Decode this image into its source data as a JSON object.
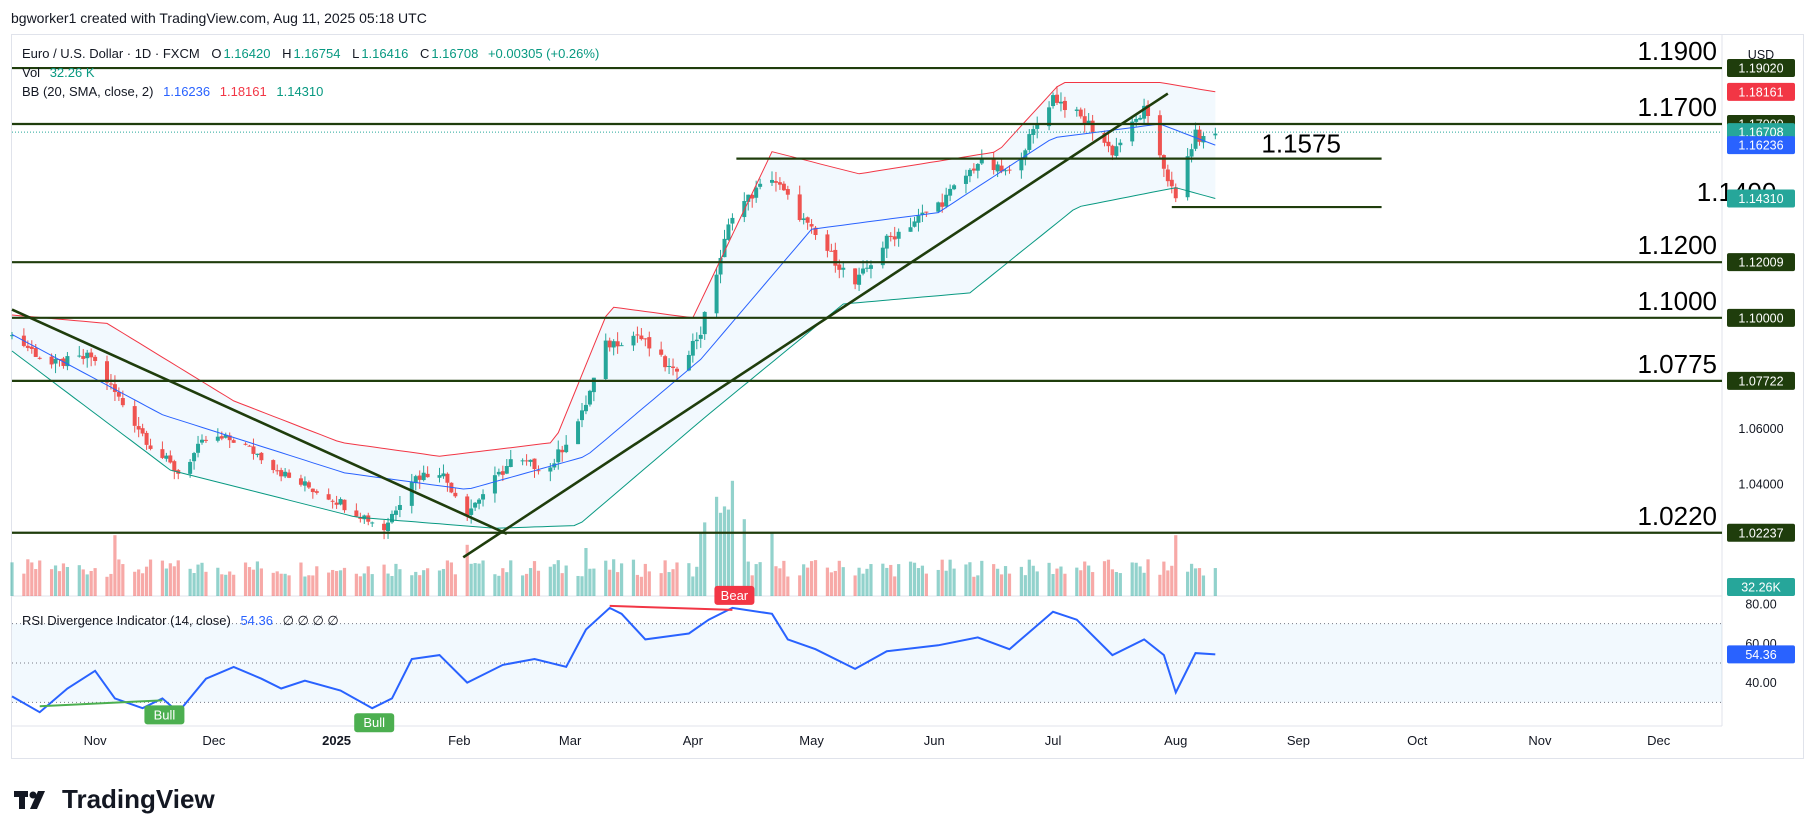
{
  "header": {
    "caption": "bgworker1 created with TradingView.com, Aug 11, 2025 05:18 UTC"
  },
  "legend": {
    "symbol": "Euro / U.S. Dollar · 1D · FXCM",
    "o_label": "O",
    "o_value": "1.16420",
    "h_label": "H",
    "h_value": "1.16754",
    "l_label": "L",
    "l_value": "1.16416",
    "c_label": "C",
    "c_value": "1.16708",
    "change": "+0.00305 (+0.26%)",
    "vol_label": "Vol",
    "vol_value": "32.26 K",
    "bb_label": "BB (20, SMA, close, 2)",
    "bb_basis": "1.16236",
    "bb_upper": "1.18161",
    "bb_lower": "1.14310"
  },
  "rsi_legend": {
    "label": "RSI Divergence Indicator (14, close)",
    "value": "54.36",
    "placeholders": "∅ ∅ ∅ ∅"
  },
  "brand": {
    "name": "TradingView"
  },
  "colors": {
    "up": "#26a69a",
    "down": "#ef5350",
    "line": "#1f3d0c",
    "bb_upper": "#f23645",
    "bb_basis": "#2962ff",
    "bb_lower": "#089981",
    "rsi": "#2962ff",
    "bull": "#4caf50",
    "bear": "#f23645",
    "axis_text": "#131722",
    "grid": "#f0f3fa"
  },
  "chart_data": {
    "type": "candlestick",
    "symbol": "EURUSD",
    "timeframe": "1D",
    "x_range": [
      "2024-10-11",
      "2025-12-17"
    ],
    "price_axis": {
      "ylim": [
        1.0017,
        1.2025
      ],
      "currency": "USD",
      "tick_labels": [
        "1.06000",
        "1.04000"
      ]
    },
    "time_axis": {
      "labels": [
        "Nov",
        "Dec",
        "2025",
        "Feb",
        "Mar",
        "Apr",
        "May",
        "Jun",
        "Jul",
        "Aug",
        "Sep",
        "Oct",
        "Nov",
        "Dec"
      ],
      "dates": [
        "2024-11-01",
        "2024-12-01",
        "2025-01-01",
        "2025-02-01",
        "2025-03-01",
        "2025-04-01",
        "2025-05-01",
        "2025-06-01",
        "2025-07-01",
        "2025-08-01",
        "2025-09-01",
        "2025-10-01",
        "2025-11-01",
        "2025-12-01"
      ]
    },
    "close_path": [
      [
        "2024-10-11",
        1.0935
      ],
      [
        "2024-10-21",
        1.083
      ],
      [
        "2024-10-31",
        1.086
      ],
      [
        "2024-11-06",
        1.073
      ],
      [
        "2024-11-15",
        1.054
      ],
      [
        "2024-11-22",
        1.044
      ],
      [
        "2024-11-29",
        1.056
      ],
      [
        "2024-12-06",
        1.056
      ],
      [
        "2024-12-13",
        1.05
      ],
      [
        "2024-12-20",
        1.042
      ],
      [
        "2024-12-31",
        1.035
      ],
      [
        "2025-01-13",
        1.024
      ],
      [
        "2025-01-20",
        1.042
      ],
      [
        "2025-01-27",
        1.045
      ],
      [
        "2025-02-03",
        1.03
      ],
      [
        "2025-02-14",
        1.048
      ],
      [
        "2025-02-24",
        1.046
      ],
      [
        "2025-03-04",
        1.065
      ],
      [
        "2025-03-10",
        1.09
      ],
      [
        "2025-03-18",
        1.094
      ],
      [
        "2025-03-27",
        1.08
      ],
      [
        "2025-04-03",
        1.095
      ],
      [
        "2025-04-11",
        1.138
      ],
      [
        "2025-04-21",
        1.151
      ],
      [
        "2025-04-30",
        1.133
      ],
      [
        "2025-05-12",
        1.112
      ],
      [
        "2025-05-20",
        1.128
      ],
      [
        "2025-06-03",
        1.142
      ],
      [
        "2025-06-12",
        1.156
      ],
      [
        "2025-06-20",
        1.152
      ],
      [
        "2025-07-01",
        1.18
      ],
      [
        "2025-07-10",
        1.17
      ],
      [
        "2025-07-16",
        1.16
      ],
      [
        "2025-07-24",
        1.175
      ],
      [
        "2025-07-28",
        1.159
      ],
      [
        "2025-08-01",
        1.142
      ],
      [
        "2025-08-04",
        1.158
      ],
      [
        "2025-08-06",
        1.166
      ],
      [
        "2025-08-08",
        1.1642
      ],
      [
        "2025-08-11",
        1.16708
      ]
    ],
    "bollinger": {
      "period": 20,
      "stddev": 2,
      "upper": [
        [
          "2024-10-11",
          1.101
        ],
        [
          "2024-11-04",
          1.098
        ],
        [
          "2024-12-06",
          1.07
        ],
        [
          "2025-01-02",
          1.055
        ],
        [
          "2025-01-27",
          1.05
        ],
        [
          "2025-02-25",
          1.055
        ],
        [
          "2025-03-11",
          1.104
        ],
        [
          "2025-04-01",
          1.1
        ],
        [
          "2025-04-21",
          1.16
        ],
        [
          "2025-05-13",
          1.152
        ],
        [
          "2025-06-17",
          1.16
        ],
        [
          "2025-07-03",
          1.185
        ],
        [
          "2025-07-28",
          1.185
        ],
        [
          "2025-08-11",
          1.18161
        ]
      ],
      "basis": [
        [
          "2024-10-11",
          1.094
        ],
        [
          "2024-11-18",
          1.065
        ],
        [
          "2025-01-03",
          1.044
        ],
        [
          "2025-02-03",
          1.038
        ],
        [
          "2025-03-05",
          1.05
        ],
        [
          "2025-04-03",
          1.085
        ],
        [
          "2025-05-01",
          1.132
        ],
        [
          "2025-06-02",
          1.138
        ],
        [
          "2025-07-01",
          1.165
        ],
        [
          "2025-07-28",
          1.17
        ],
        [
          "2025-08-11",
          1.16236
        ]
      ],
      "lower": [
        [
          "2024-10-11",
          1.088
        ],
        [
          "2024-11-20",
          1.045
        ],
        [
          "2025-01-06",
          1.028
        ],
        [
          "2025-02-10",
          1.024
        ],
        [
          "2025-03-03",
          1.025
        ],
        [
          "2025-04-04",
          1.064
        ],
        [
          "2025-05-09",
          1.105
        ],
        [
          "2025-06-10",
          1.109
        ],
        [
          "2025-07-07",
          1.14
        ],
        [
          "2025-08-01",
          1.147
        ],
        [
          "2025-08-11",
          1.1431
        ]
      ]
    },
    "horizontal_levels": [
      {
        "label": "1.1900",
        "value": 1.1902,
        "badge": "1.19020"
      },
      {
        "label": "1.1700",
        "value": 1.17,
        "badge": "1.17000"
      },
      {
        "label": "1.1575",
        "value": 1.1575,
        "from": "2025-04-12",
        "to": "2025-09-22"
      },
      {
        "label": "1.1400",
        "value": 1.14,
        "from": "2025-07-31",
        "to": "2025-09-22"
      },
      {
        "label": "1.1200",
        "value": 1.12009,
        "badge": "1.12009"
      },
      {
        "label": "1.1000",
        "value": 1.1,
        "badge": "1.10000"
      },
      {
        "label": "1.0775",
        "value": 1.07722,
        "badge": "1.07722"
      },
      {
        "label": "1.0220",
        "value": 1.02237,
        "badge": "1.02237"
      }
    ],
    "trendlines": [
      {
        "from": [
          "2024-10-11",
          1.103
        ],
        "to": [
          "2025-02-13",
          1.022
        ]
      },
      {
        "from": [
          "2025-02-02",
          1.0135
        ],
        "to": [
          "2025-07-30",
          1.181
        ]
      }
    ],
    "price_badges": [
      {
        "text": "1.18161",
        "value": 1.18161,
        "color": "#f23645"
      },
      {
        "text": "1.16708",
        "value": 1.16708,
        "color": "#26a69a"
      },
      {
        "text": "1.16236",
        "value": 1.16236,
        "color": "#2962ff"
      },
      {
        "text": "1.14310",
        "value": 1.1431,
        "color": "#26a69a"
      }
    ],
    "volume": {
      "last": "32.26K",
      "spikes": [
        [
          "2024-11-06",
          1.9
        ],
        [
          "2025-02-03",
          1.6
        ],
        [
          "2025-03-05",
          1.5
        ],
        [
          "2025-04-03",
          2.0
        ],
        [
          "2025-04-04",
          2.3
        ],
        [
          "2025-04-07",
          3.1
        ],
        [
          "2025-04-08",
          2.6
        ],
        [
          "2025-04-09",
          2.8
        ],
        [
          "2025-04-10",
          2.7
        ],
        [
          "2025-04-11",
          3.6
        ],
        [
          "2025-04-14",
          2.4
        ],
        [
          "2025-04-21",
          2.0
        ],
        [
          "2025-08-01",
          1.9
        ]
      ]
    },
    "rsi": {
      "period": 14,
      "last": "54.36",
      "ylim": [
        20,
        82
      ],
      "levels": [
        30,
        50,
        70
      ],
      "tick_labels": [
        "80.00",
        "60.00",
        "40.00"
      ],
      "path": [
        [
          "2024-10-11",
          33
        ],
        [
          "2024-10-18",
          25
        ],
        [
          "2024-10-25",
          37
        ],
        [
          "2024-11-01",
          46
        ],
        [
          "2024-11-06",
          32
        ],
        [
          "2024-11-13",
          27
        ],
        [
          "2024-11-18",
          32
        ],
        [
          "2024-11-22",
          25
        ],
        [
          "2024-11-29",
          42
        ],
        [
          "2024-12-06",
          48
        ],
        [
          "2024-12-13",
          42
        ],
        [
          "2024-12-18",
          37
        ],
        [
          "2024-12-24",
          41
        ],
        [
          "2025-01-02",
          36
        ],
        [
          "2025-01-10",
          27
        ],
        [
          "2025-01-15",
          32
        ],
        [
          "2025-01-20",
          52
        ],
        [
          "2025-01-27",
          54
        ],
        [
          "2025-02-03",
          40
        ],
        [
          "2025-02-12",
          49
        ],
        [
          "2025-02-20",
          52
        ],
        [
          "2025-02-28",
          48
        ],
        [
          "2025-03-05",
          67
        ],
        [
          "2025-03-11",
          78
        ],
        [
          "2025-03-14",
          75
        ],
        [
          "2025-03-20",
          62
        ],
        [
          "2025-03-31",
          65
        ],
        [
          "2025-04-05",
          72
        ],
        [
          "2025-04-11",
          78
        ],
        [
          "2025-04-21",
          75
        ],
        [
          "2025-04-25",
          62
        ],
        [
          "2025-05-02",
          57
        ],
        [
          "2025-05-12",
          47
        ],
        [
          "2025-05-20",
          56
        ],
        [
          "2025-06-02",
          59
        ],
        [
          "2025-06-12",
          63
        ],
        [
          "2025-06-20",
          57
        ],
        [
          "2025-07-01",
          76
        ],
        [
          "2025-07-07",
          72
        ],
        [
          "2025-07-16",
          54
        ],
        [
          "2025-07-24",
          62
        ],
        [
          "2025-07-29",
          54
        ],
        [
          "2025-08-01",
          35
        ],
        [
          "2025-08-06",
          55
        ],
        [
          "2025-08-11",
          54.36
        ]
      ],
      "signals": [
        {
          "type": "Bull",
          "label": "Bull",
          "from": [
            "2024-10-18",
            28
          ],
          "to": [
            "2024-11-18",
            31
          ]
        },
        {
          "type": "Bull",
          "label": "Bull",
          "from": [
            "2025-01-10",
            27
          ],
          "to": [
            "2025-01-10",
            27
          ]
        },
        {
          "type": "Bear",
          "label": "Bear",
          "from": [
            "2025-03-11",
            79
          ],
          "to": [
            "2025-04-11",
            77
          ]
        }
      ]
    }
  }
}
